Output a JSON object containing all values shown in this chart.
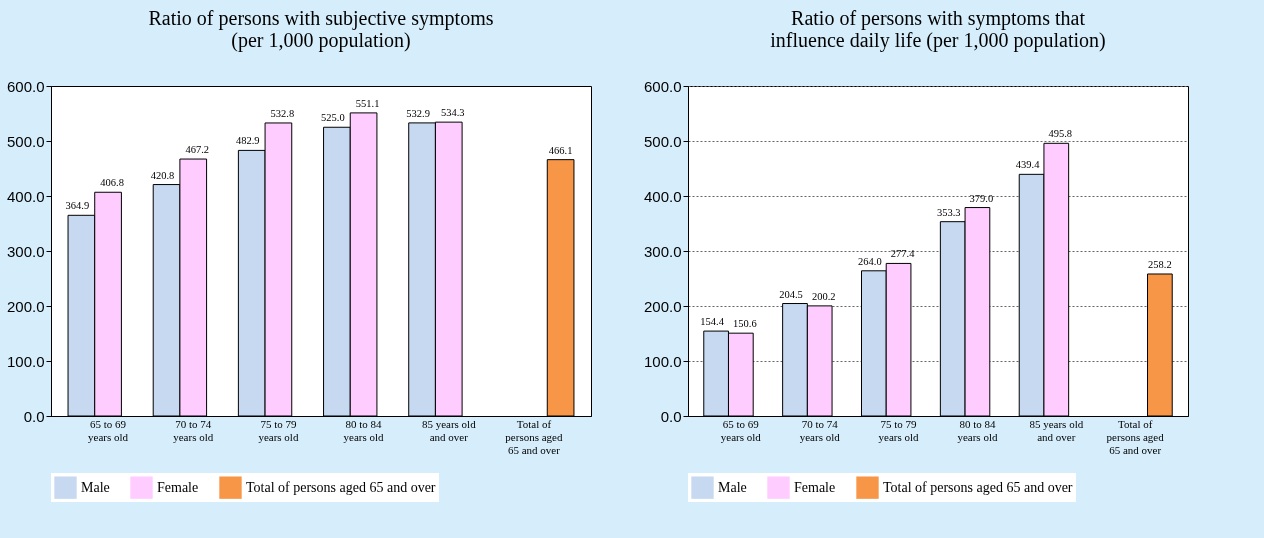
{
  "chart_data": [
    {
      "type": "bar",
      "title": "Ratio of persons with subjective symptoms\n(per 1,000 population)",
      "categories": [
        "65 to 69 years old",
        "70 to 74 years old",
        "75 to 79 years old",
        "80 to 84 years old",
        "85 years old and over",
        "Total of persons aged 65 and over"
      ],
      "series": [
        {
          "name": "Male",
          "color": "#c6d9f1",
          "values": [
            364.9,
            420.8,
            482.9,
            525.0,
            532.9,
            null
          ],
          "value_labels": [
            "364.9",
            "420.8",
            "482.9",
            "525.0",
            "532.9",
            null
          ]
        },
        {
          "name": "Female",
          "color": "#ffccff",
          "values": [
            406.8,
            467.2,
            532.8,
            551.1,
            534.3,
            null
          ],
          "value_labels": [
            "406.8",
            "467.2",
            "532.8",
            "551.1",
            "534.3",
            null
          ]
        },
        {
          "name": "Total of persons aged 65 and over",
          "color": "#f79646",
          "values": [
            null,
            null,
            null,
            null,
            null,
            466.1
          ],
          "value_labels": [
            null,
            null,
            null,
            null,
            null,
            "466.1"
          ]
        }
      ],
      "ylim": [
        0,
        600
      ],
      "yticks": [
        {
          "value": 0,
          "label": "0.0"
        },
        {
          "value": 100,
          "label": "100.0"
        },
        {
          "value": 200,
          "label": "200.0"
        },
        {
          "value": 300,
          "label": "300.0"
        },
        {
          "value": 400,
          "label": "400.0"
        },
        {
          "value": 500,
          "label": "500.0"
        },
        {
          "value": 600,
          "label": "600.0"
        }
      ],
      "legend": "bottom"
    },
    {
      "type": "bar",
      "title": "Ratio of persons with symptoms that\ninfluence daily life (per 1,000 population)",
      "categories": [
        "65 to 69 years old",
        "70 to 74 years old",
        "75 to 79 years old",
        "80 to 84 years old",
        "85 years old and over",
        "Total of persons aged 65 and over"
      ],
      "series": [
        {
          "name": "Male",
          "color": "#c6d9f1",
          "values": [
            154.4,
            204.5,
            264.0,
            353.3,
            439.4,
            null
          ],
          "value_labels": [
            "154.4",
            "204.5",
            "264.0",
            "353.3",
            "439.4",
            null
          ]
        },
        {
          "name": "Female",
          "color": "#ffccff",
          "values": [
            150.6,
            200.2,
            277.4,
            379.0,
            495.8,
            null
          ],
          "value_labels": [
            "150.6",
            "200.2",
            "277.4",
            "379.0",
            "495.8",
            null
          ]
        },
        {
          "name": "Total of persons aged 65 and over",
          "color": "#f79646",
          "values": [
            null,
            null,
            null,
            null,
            null,
            258.2
          ],
          "value_labels": [
            null,
            null,
            null,
            null,
            null,
            "258.2"
          ]
        }
      ],
      "ylim": [
        0,
        600
      ],
      "yticks": [
        {
          "value": 0,
          "label": "0.0"
        },
        {
          "value": 100,
          "label": "100.0"
        },
        {
          "value": 200,
          "label": "200.0"
        },
        {
          "value": 300,
          "label": "300.0"
        },
        {
          "value": 400,
          "label": "400.0"
        },
        {
          "value": 500,
          "label": "500.0"
        },
        {
          "value": 600,
          "label": "600.0"
        }
      ],
      "grid": "y",
      "legend": "bottom"
    }
  ]
}
